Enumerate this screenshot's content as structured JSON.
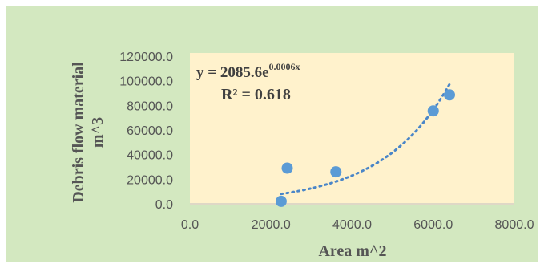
{
  "chart_data": {
    "type": "scatter",
    "title": "",
    "xlabel": "Area m^2",
    "ylabel_line1": "Debris flow material",
    "ylabel_line2": "m^3",
    "xlim": [
      0,
      8000
    ],
    "ylim": [
      0,
      120000
    ],
    "x_ticks": [
      "0.0",
      "2000.0",
      "4000.0",
      "6000.0",
      "8000.0"
    ],
    "y_ticks": [
      "0.0",
      "20000.0",
      "40000.0",
      "60000.0",
      "80000.0",
      "100000.0",
      "120000.0"
    ],
    "grid": "none",
    "series": [
      {
        "points": [
          {
            "x": 2250,
            "y": 2000
          },
          {
            "x": 2400,
            "y": 29000
          },
          {
            "x": 3600,
            "y": 26000
          },
          {
            "x": 6000,
            "y": 75500
          },
          {
            "x": 6400,
            "y": 88500
          }
        ]
      }
    ],
    "trendline": {
      "type": "exponential",
      "a": 2085.6,
      "b": 0.0006,
      "x_range": [
        2250,
        6400
      ],
      "equation_prefix": "y = 2085.6e",
      "equation_exponent": "0.0006x",
      "r_squared_label": "R² = 0.618"
    },
    "colors": {
      "outer_background": "#d3e8c0",
      "plot_background": "#fff2cc",
      "marker": "#5b9bd5",
      "trendline": "#4a86c8",
      "axis": "#bfbfbf"
    }
  }
}
